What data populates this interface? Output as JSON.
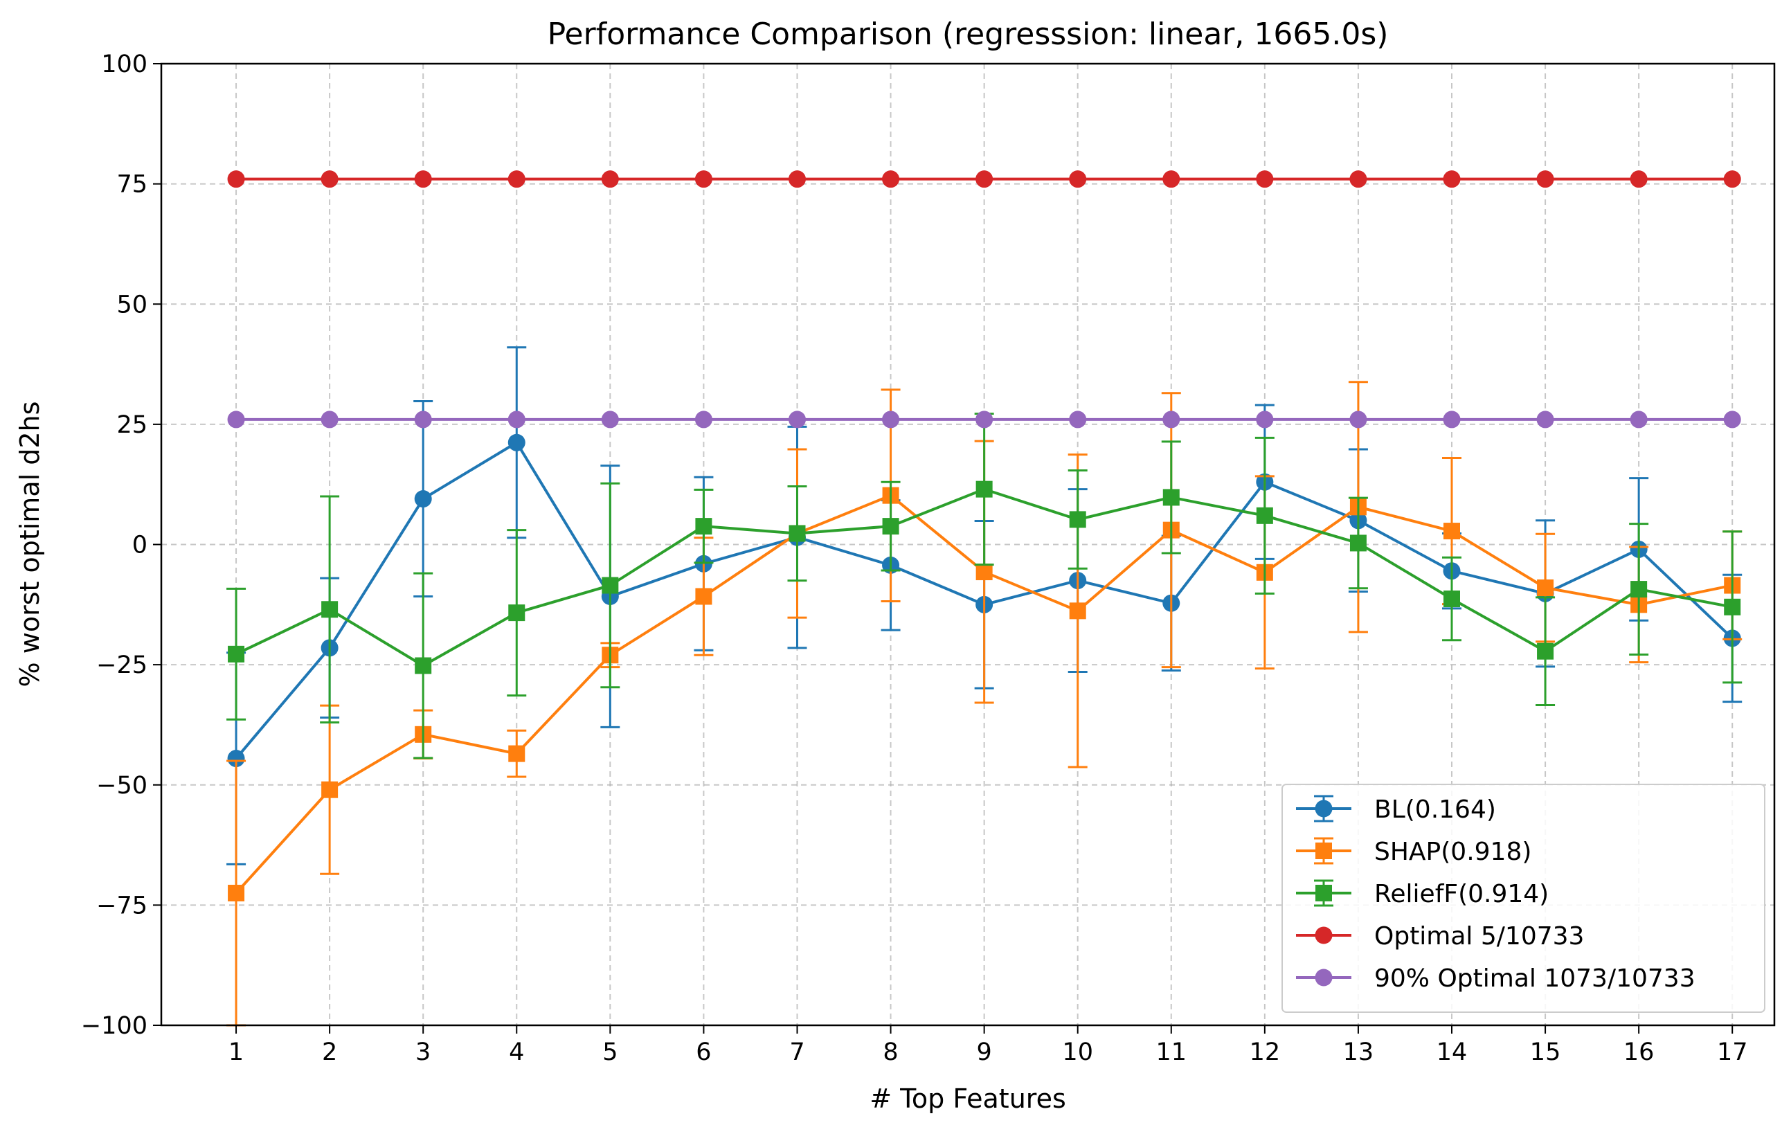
{
  "chart_data": {
    "type": "line",
    "title": "Performance Comparison (regresssion: linear, 1665.0s)",
    "xlabel": "# Top Features",
    "ylabel": "% worst optimal d2hs",
    "ylim": [
      -100,
      100
    ],
    "yticks": [
      -100,
      -75,
      -50,
      -25,
      0,
      25,
      50,
      75,
      100
    ],
    "yticklabels": [
      "−100",
      "−75",
      "−50",
      "−25",
      "0",
      "25",
      "50",
      "75",
      "100"
    ],
    "xlim": [
      0.2,
      17.45
    ],
    "x": [
      1,
      2,
      3,
      4,
      5,
      6,
      7,
      8,
      9,
      10,
      11,
      12,
      13,
      14,
      15,
      16,
      17
    ],
    "xticklabels": [
      "1",
      "2",
      "3",
      "4",
      "5",
      "6",
      "7",
      "8",
      "9",
      "10",
      "11",
      "12",
      "13",
      "14",
      "15",
      "16",
      "17"
    ],
    "grid": true,
    "legend_position": "lower-right",
    "series": [
      {
        "name": "BL(0.164)",
        "color": "#1f77b4",
        "marker": "circle",
        "values": [
          -44.5,
          -21.5,
          9.5,
          21.2,
          -10.8,
          -4.0,
          1.5,
          -4.3,
          -12.5,
          -7.5,
          -12.2,
          13.0,
          5.0,
          -5.5,
          -10.2,
          -1.0,
          -19.5
        ],
        "err": [
          22,
          14.5,
          20.3,
          19.8,
          27.2,
          18,
          23,
          13.5,
          17.4,
          19,
          14,
          16,
          14.8,
          7.8,
          15.2,
          14.8,
          13.2
        ]
      },
      {
        "name": "SHAP(0.918)",
        "color": "#ff7f0e",
        "marker": "square",
        "values": [
          -72.5,
          -51.0,
          -39.5,
          -43.5,
          -23.0,
          -10.8,
          2.3,
          10.2,
          -5.7,
          -13.8,
          3.0,
          -5.8,
          7.8,
          2.8,
          -9.0,
          -12.5,
          -8.5
        ],
        "err": [
          27.5,
          17.5,
          5.0,
          4.8,
          2.5,
          12.2,
          17.5,
          22.0,
          27.2,
          32.5,
          28.5,
          20.0,
          26.0,
          15.2,
          11.2,
          12.0,
          11.2
        ]
      },
      {
        "name": "ReliefF(0.914)",
        "color": "#2ca02c",
        "marker": "square",
        "values": [
          -22.8,
          -13.5,
          -25.2,
          -14.2,
          -8.5,
          3.8,
          2.3,
          3.8,
          11.5,
          5.2,
          9.8,
          6.0,
          0.3,
          -11.3,
          -22.2,
          -9.3,
          -13.0
        ],
        "err": [
          13.6,
          23.5,
          19.2,
          17.2,
          21.2,
          7.6,
          9.8,
          9.2,
          15.7,
          10.2,
          11.6,
          16.2,
          9.4,
          8.6,
          11.2,
          13.6,
          15.7
        ]
      },
      {
        "name": "Optimal 5/10733",
        "color": "#d62728",
        "marker": "circle",
        "values": [
          76,
          76,
          76,
          76,
          76,
          76,
          76,
          76,
          76,
          76,
          76,
          76,
          76,
          76,
          76,
          76,
          76
        ]
      },
      {
        "name": "90% Optimal 1073/10733",
        "color": "#9467bd",
        "marker": "circle",
        "values": [
          26,
          26,
          26,
          26,
          26,
          26,
          26,
          26,
          26,
          26,
          26,
          26,
          26,
          26,
          26,
          26,
          26
        ]
      }
    ]
  }
}
